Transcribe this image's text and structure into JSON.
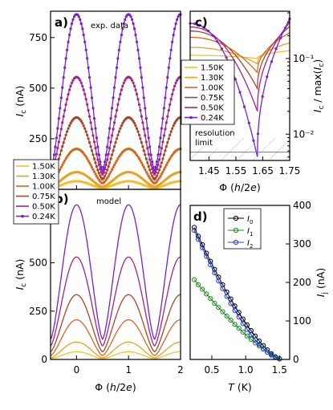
{
  "figure": {
    "series_colors": {
      "1.50K": "#f2c12e",
      "1.30K": "#e8a126",
      "1.00K": "#d2691e",
      "0.75K": "#a8452a",
      "0.50K": "#a32486",
      "0.24K": "#7a1fd1"
    },
    "temperature_legend": [
      "1.50K",
      "1.30K",
      "1.00K",
      "0.75K",
      "0.50K",
      "0.24K"
    ],
    "current_colors": {
      "I0": "#000000",
      "I1": "#1a8a1a",
      "I2": "#1f3fd6"
    }
  },
  "chart_data": [
    {
      "panel": "a)",
      "type": "line",
      "annotation": "exp. data",
      "ylabel": "I_c (nA)",
      "xlim": [
        -0.5,
        2.0
      ],
      "ylim": [
        0,
        880
      ],
      "yticks": [
        "0",
        "250",
        "500",
        "750"
      ],
      "ytick_values": [
        0,
        250,
        500,
        750
      ],
      "peak_x": [
        0,
        1,
        2
      ],
      "series": [
        {
          "name": "1.50K",
          "peak": 40,
          "min": 5
        },
        {
          "name": "1.30K",
          "peak": 85,
          "min": 12
        },
        {
          "name": "1.00K",
          "peak": 200,
          "min": 30
        },
        {
          "name": "0.75K",
          "peak": 355,
          "min": 50
        },
        {
          "name": "0.50K",
          "peak": 555,
          "min": 75
        },
        {
          "name": "0.24K",
          "peak": 865,
          "min": 95
        }
      ]
    },
    {
      "panel": "b)",
      "type": "line",
      "annotation": "model",
      "xlabel": "Φ (h/2e)",
      "ylabel": "I_c (nA)",
      "xlim": [
        -0.5,
        2.0
      ],
      "ylim": [
        0,
        880
      ],
      "xticks": [
        "0",
        "1",
        "2"
      ],
      "xtick_values": [
        0,
        1,
        2
      ],
      "yticks": [
        "0",
        "250",
        "500",
        "750"
      ],
      "ytick_values": [
        0,
        250,
        500,
        750
      ],
      "series": [
        {
          "name": "1.50K",
          "peak": 40,
          "min": 3
        },
        {
          "name": "1.30K",
          "peak": 90,
          "min": 8
        },
        {
          "name": "1.00K",
          "peak": 205,
          "min": 20
        },
        {
          "name": "0.75K",
          "peak": 335,
          "min": 40
        },
        {
          "name": "0.50K",
          "peak": 530,
          "min": 70
        },
        {
          "name": "0.24K",
          "peak": 800,
          "min": 105
        }
      ]
    },
    {
      "panel": "c)",
      "type": "line",
      "xlabel": "Φ (h/2e)",
      "ylabel": "I_c / max(I_c)",
      "yscale": "log",
      "xlim": [
        1.38,
        1.75
      ],
      "ylim": [
        0.0045,
        0.42
      ],
      "xticks": [
        "1.45",
        "1.55",
        "1.65",
        "1.75"
      ],
      "xtick_values": [
        1.45,
        1.55,
        1.65,
        1.75
      ],
      "yticks": [
        "10⁻¹",
        "10⁻²"
      ],
      "ytick_values": [
        0.1,
        0.01
      ],
      "annotation": "resolution limit",
      "resolution_limit": 0.0058,
      "series": [
        {
          "name": "1.50K",
          "start": 0.11,
          "dip": 0.1
        },
        {
          "name": "1.30K",
          "start": 0.14,
          "dip": 0.085
        },
        {
          "name": "1.00K",
          "start": 0.19,
          "dip": 0.065
        },
        {
          "name": "0.75K",
          "start": 0.23,
          "dip": 0.04
        },
        {
          "name": "0.50K",
          "start": 0.26,
          "dip": 0.02
        },
        {
          "name": "0.24K",
          "start": 0.29,
          "dip": 0.005
        }
      ]
    },
    {
      "panel": "d)",
      "type": "scatter",
      "xlabel": "T (K)",
      "ylabel": "I_j (nA)",
      "xlim": [
        0.18,
        1.65
      ],
      "ylim": [
        0,
        400
      ],
      "xticks": [
        "0.5",
        "1.0",
        "1.5"
      ],
      "xtick_values": [
        0.5,
        1.0,
        1.5
      ],
      "yticks": [
        "0",
        "100",
        "200",
        "300",
        "400"
      ],
      "ytick_values": [
        0,
        100,
        200,
        300,
        400
      ],
      "x": [
        0.24,
        0.3,
        0.36,
        0.42,
        0.48,
        0.54,
        0.6,
        0.66,
        0.72,
        0.78,
        0.84,
        0.9,
        0.96,
        1.02,
        1.08,
        1.14,
        1.2,
        1.26,
        1.32,
        1.38,
        1.44,
        1.5
      ],
      "series": [
        {
          "name": "I_0",
          "legend": "I0",
          "values": [
            343,
            320,
            298,
            276,
            255,
            234,
            214,
            194,
            175,
            157,
            139,
            122,
            105,
            90,
            75,
            61,
            48,
            36,
            25,
            15,
            7,
            2
          ]
        },
        {
          "name": "I_1",
          "legend": "I1",
          "values": [
            207,
            194,
            182,
            170,
            158,
            146,
            135,
            124,
            113,
            102,
            91,
            81,
            71,
            61,
            52,
            43,
            35,
            27,
            19,
            12,
            6,
            2
          ]
        },
        {
          "name": "I_2",
          "legend": "I2",
          "values": [
            335,
            312,
            290,
            268,
            246,
            225,
            204,
            184,
            164,
            145,
            127,
            110,
            93,
            78,
            64,
            51,
            39,
            28,
            19,
            11,
            5,
            1
          ]
        }
      ]
    }
  ]
}
